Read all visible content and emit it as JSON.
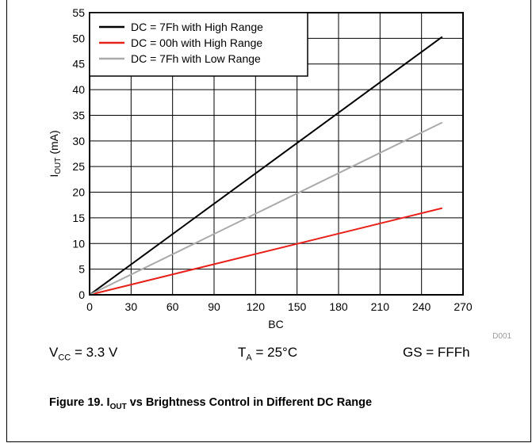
{
  "chart_data": {
    "type": "line",
    "xlabel": "BC",
    "ylabel_main": "I",
    "ylabel_sub": "OUT",
    "ylabel_unit": "(mA)",
    "xlim": [
      0,
      270
    ],
    "ylim": [
      0,
      55
    ],
    "xticks": [
      0,
      30,
      60,
      90,
      120,
      150,
      180,
      210,
      240,
      270
    ],
    "yticks": [
      0,
      5,
      10,
      15,
      20,
      25,
      30,
      35,
      40,
      45,
      50,
      55
    ],
    "grid": true,
    "legend_position": "top-left",
    "series": [
      {
        "name": "DC = 7Fh with High Range",
        "color": "#000000",
        "x": [
          0,
          255
        ],
        "y": [
          0,
          50.3
        ]
      },
      {
        "name": "DC = 00h with High Range",
        "color": "#e8201a",
        "x": [
          0,
          255
        ],
        "y": [
          0,
          16.9
        ]
      },
      {
        "name": "DC = 7Fh with Low Range",
        "color": "#aaaaaa",
        "x": [
          0,
          255
        ],
        "y": [
          0,
          33.6
        ]
      }
    ],
    "corner_label": "D001"
  },
  "conditions": {
    "vcc_main": "V",
    "vcc_sub": "CC",
    "vcc_value": " = 3.3 V",
    "ta_main": "T",
    "ta_sub": "A",
    "ta_value": " = 25°C",
    "gs": "GS = FFFh"
  },
  "caption": {
    "prefix": "Figure 19. I",
    "sub": "OUT",
    "suffix": " vs Brightness Control in Different DC Range"
  }
}
